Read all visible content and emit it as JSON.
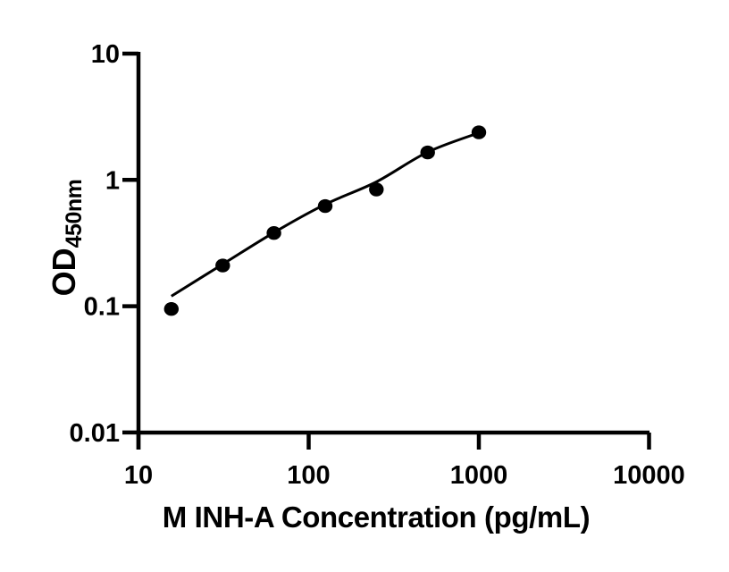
{
  "chart_data": {
    "type": "scatter",
    "title": "",
    "xlabel": "M INH-A Concentration (pg/mL)",
    "ylabel_main": "OD",
    "ylabel_sub": "450nm",
    "x_scale": "log10",
    "y_scale": "log10",
    "xlim": [
      10,
      10000
    ],
    "ylim": [
      0.01,
      10
    ],
    "grid": false,
    "legend": null,
    "axis_color": "#000000",
    "line_color": "#000000",
    "marker_color": "#000000",
    "marker_shape": "filled-circle",
    "x_ticks": [
      {
        "value": 10,
        "label": "10"
      },
      {
        "value": 100,
        "label": "100"
      },
      {
        "value": 1000,
        "label": "1000"
      },
      {
        "value": 10000,
        "label": "10000"
      }
    ],
    "y_ticks": [
      {
        "value": 10,
        "label": "10"
      },
      {
        "value": 1,
        "label": "1"
      },
      {
        "value": 0.1,
        "label": "0.1"
      },
      {
        "value": 0.01,
        "label": "0.01"
      }
    ],
    "points": [
      {
        "conc": 15.6,
        "od": 0.095
      },
      {
        "conc": 31.25,
        "od": 0.21
      },
      {
        "conc": 62.5,
        "od": 0.38
      },
      {
        "conc": 125,
        "od": 0.62
      },
      {
        "conc": 250,
        "od": 0.84
      },
      {
        "conc": 500,
        "od": 1.65
      },
      {
        "conc": 1000,
        "od": 2.38
      }
    ],
    "trend_line": [
      {
        "conc": 15.6,
        "od": 0.12
      },
      {
        "conc": 31.25,
        "od": 0.215
      },
      {
        "conc": 62.5,
        "od": 0.383
      },
      {
        "conc": 125,
        "od": 0.64
      },
      {
        "conc": 250,
        "od": 0.965
      },
      {
        "conc": 500,
        "od": 1.66
      },
      {
        "conc": 1000,
        "od": 2.36
      }
    ]
  }
}
